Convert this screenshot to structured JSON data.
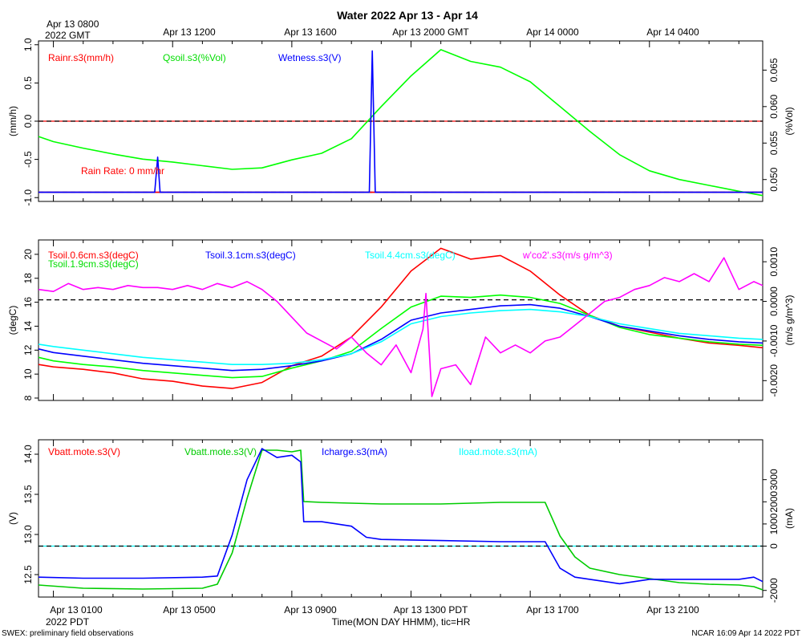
{
  "title": "Water 2022 Apr 13 - Apr 14",
  "top_axis": {
    "first_tick": [
      "Apr 13 0800",
      "2022 GMT"
    ],
    "ticks": [
      "Apr 13 1200",
      "Apr 13 1600",
      "Apr 13 2000 GMT",
      "Apr 14 0000",
      "Apr 14 0400"
    ]
  },
  "bottom_axis": {
    "ticks": [
      "Apr 13 0100",
      "Apr 13 0500",
      "Apr 13 0900",
      "Apr 13 1300 PDT",
      "Apr 13 1700",
      "Apr 13 2100"
    ],
    "year_label": "2022 PDT",
    "xlabel": "Time(MON DAY HHMM), tic=HR"
  },
  "footer": {
    "left": "SWEX: preliminary field observations",
    "right": "NCAR 16:09 Apr 14 2022 PDT"
  },
  "colors": {
    "red": "#ff0000",
    "green": "#00dd00",
    "blue": "#0000ff",
    "cyan": "#00ffff",
    "magenta": "#ff00ff",
    "black": "#000000"
  },
  "chart_data": [
    {
      "type": "line",
      "xlim": [
        0.5,
        24.8
      ],
      "ylabel_left": "(mm/h)",
      "ylabel_right": "(%Vol)",
      "ylim_left": [
        -1.05,
        1.05
      ],
      "ylim_right": [
        0.047,
        0.069
      ],
      "yticks_left": [
        {
          "v": -1.0,
          "label": "-1.0"
        },
        {
          "v": -0.5,
          "label": "-0.5"
        },
        {
          "v": 0.0,
          "label": "0.0"
        },
        {
          "v": 0.5,
          "label": "0.5"
        },
        {
          "v": 1.0,
          "label": "1.0"
        }
      ],
      "yticks_right": [
        {
          "v": 0.05,
          "label": "0.050"
        },
        {
          "v": 0.055,
          "label": "0.055"
        },
        {
          "v": 0.06,
          "label": "0.060"
        },
        {
          "v": 0.065,
          "label": "0.065"
        }
      ],
      "hlines": [
        {
          "axis": "left",
          "y": 0.0,
          "color": "#ff0000"
        },
        {
          "axis": "left",
          "y": 0.0,
          "color": "#000000"
        },
        {
          "axis": "left",
          "y": -0.93,
          "color": "#0000ff"
        },
        {
          "axis": "left",
          "y": -0.93,
          "color": "#000000"
        }
      ],
      "annotation": {
        "text": "Rain Rate: 0 mm/hr",
        "color": "#ff0000"
      },
      "series": [
        {
          "name": "Rainr.s3(mm/h)",
          "color": "#ff0000",
          "axis": "left",
          "x": [
            0.5,
            24.8
          ],
          "y": [
            -0.93,
            -0.93
          ]
        },
        {
          "name": "Qsoil.s3(%Vol)",
          "color": "#00ff00",
          "axis": "right",
          "x": [
            0.5,
            1,
            2,
            3,
            4,
            5,
            6,
            7,
            8,
            9,
            10,
            11,
            12,
            13,
            14,
            15,
            16,
            17,
            18,
            19,
            20,
            21,
            22,
            23,
            24,
            24.8
          ],
          "y": [
            0.0559,
            0.0552,
            0.0543,
            0.0535,
            0.0528,
            0.0524,
            0.0519,
            0.0514,
            0.0516,
            0.0527,
            0.0536,
            0.0556,
            0.06,
            0.0642,
            0.0678,
            0.0662,
            0.0654,
            0.0634,
            0.06,
            0.0566,
            0.0534,
            0.0512,
            0.05,
            0.0492,
            0.0484,
            0.0478
          ]
        },
        {
          "name": "Wetness.s3(V)",
          "color": "#0000ff",
          "axis": "left",
          "x": [
            0.5,
            4.4,
            4.5,
            4.58,
            11.6,
            11.7,
            11.8,
            24.8
          ],
          "y": [
            -0.93,
            -0.93,
            -0.47,
            -0.93,
            -0.93,
            0.92,
            -0.93,
            -0.93
          ]
        }
      ]
    },
    {
      "type": "line",
      "xlim": [
        0.5,
        24.8
      ],
      "ylabel_left": "(degC)",
      "ylabel_right": "(m/s g/m^3)",
      "ylim_left": [
        7.8,
        21.2
      ],
      "ylim_right": [
        -0.0025,
        0.00155
      ],
      "yticks_left": [
        {
          "v": 8,
          "label": "8"
        },
        {
          "v": 10,
          "label": "10"
        },
        {
          "v": 12,
          "label": "12"
        },
        {
          "v": 14,
          "label": "14"
        },
        {
          "v": 16,
          "label": "16"
        },
        {
          "v": 18,
          "label": "18"
        },
        {
          "v": 20,
          "label": "20"
        }
      ],
      "yticks_right": [
        {
          "v": -0.002,
          "label": "-0.0020"
        },
        {
          "v": -0.001,
          "label": "-0.0010"
        },
        {
          "v": 0.0,
          "label": "0.0000"
        },
        {
          "v": 0.001,
          "label": "0.0010"
        }
      ],
      "hlines": [
        {
          "axis": "left",
          "y": 16.2,
          "color": "#000000"
        }
      ],
      "series": [
        {
          "name": "Tsoil.0.6cm.s3(degC)",
          "color": "#ff0000",
          "axis": "left",
          "x": [
            0.5,
            1,
            2,
            3,
            4,
            5,
            6,
            7,
            8,
            9,
            10,
            11,
            12,
            13,
            14,
            15,
            16,
            17,
            18,
            19,
            20,
            21,
            22,
            23,
            24,
            24.8
          ],
          "y": [
            10.8,
            10.6,
            10.4,
            10.1,
            9.6,
            9.4,
            9.0,
            8.8,
            9.3,
            10.7,
            11.5,
            13.1,
            15.6,
            18.6,
            20.5,
            19.6,
            19.9,
            18.6,
            16.6,
            14.9,
            14.0,
            13.5,
            13.0,
            12.6,
            12.4,
            12.2
          ]
        },
        {
          "name": "Tsoil.1.9cm.s3(degC)",
          "color": "#00ff00",
          "axis": "left",
          "x": [
            0.5,
            1,
            2,
            3,
            4,
            5,
            6,
            7,
            8,
            9,
            10,
            11,
            12,
            13,
            14,
            15,
            16,
            17,
            18,
            19,
            20,
            21,
            22,
            23,
            24,
            24.8
          ],
          "y": [
            11.4,
            11.1,
            10.8,
            10.6,
            10.3,
            10.1,
            9.9,
            9.7,
            9.8,
            10.5,
            11.1,
            11.9,
            13.8,
            15.6,
            16.5,
            16.4,
            16.6,
            16.4,
            15.9,
            14.9,
            13.9,
            13.3,
            13.0,
            12.7,
            12.5,
            12.4
          ]
        },
        {
          "name": "Tsoil.3.1cm.s3(degC)",
          "color": "#0000ff",
          "axis": "left",
          "x": [
            0.5,
            1,
            2,
            3,
            4,
            5,
            6,
            7,
            8,
            9,
            10,
            11,
            12,
            13,
            14,
            15,
            16,
            17,
            18,
            19,
            20,
            21,
            22,
            23,
            24,
            24.8
          ],
          "y": [
            12.1,
            11.8,
            11.5,
            11.2,
            10.9,
            10.7,
            10.5,
            10.3,
            10.4,
            10.7,
            11.1,
            11.7,
            12.9,
            14.5,
            15.1,
            15.4,
            15.7,
            15.8,
            15.5,
            14.8,
            14.0,
            13.6,
            13.2,
            12.9,
            12.7,
            12.6
          ]
        },
        {
          "name": "Tsoil.4.4cm.s3(degC)",
          "color": "#00ffff",
          "axis": "left",
          "x": [
            0.5,
            1,
            2,
            3,
            4,
            5,
            6,
            7,
            8,
            9,
            10,
            11,
            12,
            13,
            14,
            15,
            16,
            17,
            18,
            19,
            20,
            21,
            22,
            23,
            24,
            24.8
          ],
          "y": [
            12.5,
            12.3,
            12.0,
            11.7,
            11.4,
            11.2,
            11.0,
            10.8,
            10.8,
            10.9,
            11.2,
            11.7,
            12.7,
            14.2,
            14.8,
            15.1,
            15.3,
            15.4,
            15.2,
            14.8,
            14.2,
            13.8,
            13.4,
            13.2,
            13.0,
            12.9
          ]
        },
        {
          "name": "w'co2'.s3(m/s g/m^3)",
          "color": "#ff00ff",
          "axis": "right",
          "x": [
            0.5,
            1,
            1.5,
            2,
            2.5,
            3,
            3.5,
            4,
            4.5,
            5,
            5.5,
            6,
            6.5,
            7,
            7.5,
            8,
            8.5,
            9,
            9.5,
            10,
            10.5,
            11,
            11.5,
            12,
            12.5,
            13,
            13.4,
            13.5,
            13.7,
            14,
            14.5,
            15,
            15.5,
            16,
            16.5,
            17,
            17.5,
            18,
            18.5,
            19,
            19.5,
            20,
            20.5,
            21,
            21.5,
            22,
            22.5,
            23,
            23.5,
            24,
            24.5,
            24.8
          ],
          "y": [
            0.0003,
            0.00025,
            0.00045,
            0.0003,
            0.00035,
            0.0003,
            0.0004,
            0.00035,
            0.00035,
            0.0003,
            0.0004,
            0.0003,
            0.00045,
            0.00035,
            0.0005,
            0.0003,
            0.0,
            -0.0004,
            -0.0008,
            -0.001,
            -0.0012,
            -0.0009,
            -0.0013,
            -0.0016,
            -0.0011,
            -0.0018,
            -0.0007,
            0.0002,
            -0.0024,
            -0.0017,
            -0.0016,
            -0.0021,
            -0.0009,
            -0.0013,
            -0.0011,
            -0.0013,
            -0.001,
            -0.0009,
            -0.0006,
            -0.0003,
            0.0,
            0.0001,
            0.0003,
            0.0004,
            0.0006,
            0.0005,
            0.0007,
            0.0005,
            0.0011,
            0.0003,
            0.0005,
            0.0004
          ]
        }
      ]
    },
    {
      "type": "line",
      "xlim": [
        0.5,
        24.8
      ],
      "ylabel_left": "(V)",
      "ylabel_right": "(mA)",
      "ylim_left": [
        12.22,
        14.18
      ],
      "ylim_right": [
        -2300,
        4800
      ],
      "yticks_left": [
        {
          "v": 12.5,
          "label": "12.5"
        },
        {
          "v": 13.0,
          "label": "13.0"
        },
        {
          "v": 13.5,
          "label": "13.5"
        },
        {
          "v": 14.0,
          "label": "14.0"
        }
      ],
      "yticks_right": [
        {
          "v": -2000,
          "label": "-2000"
        },
        {
          "v": 0,
          "label": "0"
        },
        {
          "v": 1000,
          "label": "1000"
        },
        {
          "v": 2000,
          "label": "2000"
        },
        {
          "v": 3000,
          "label": "3000"
        }
      ],
      "hlines": [
        {
          "axis": "right",
          "y": 0,
          "color": "#00ffff"
        },
        {
          "axis": "right",
          "y": 0,
          "color": "#000000"
        }
      ],
      "series": [
        {
          "name": "Vbatt.mote.s3(V)",
          "color": "#ff0000",
          "axis": "left",
          "x": [],
          "y": []
        },
        {
          "name": "Vbatt.mote.s3(V)",
          "color": "#00cc00",
          "axis": "left",
          "x": [
            0.5,
            2,
            4,
            6,
            6.5,
            7.0,
            7.5,
            8.0,
            8.5,
            9.0,
            9.3,
            9.4,
            10,
            12,
            14,
            16,
            17.5,
            18.0,
            18.5,
            19,
            20,
            21,
            22,
            23,
            24,
            24.5,
            24.8
          ],
          "y": [
            12.37,
            12.33,
            12.32,
            12.33,
            12.38,
            12.77,
            13.45,
            14.05,
            14.05,
            14.03,
            14.05,
            13.41,
            13.4,
            13.38,
            13.38,
            13.4,
            13.4,
            12.98,
            12.72,
            12.58,
            12.5,
            12.45,
            12.4,
            12.38,
            12.37,
            12.35,
            12.31
          ]
        },
        {
          "name": "Icharge.s3(mA)",
          "color": "#0000ff",
          "axis": "right",
          "x": [
            0.5,
            2,
            4,
            6,
            6.5,
            7.0,
            7.5,
            8.0,
            8.5,
            9.0,
            9.3,
            9.4,
            10,
            11,
            11.5,
            12,
            14,
            16,
            17.5,
            18.0,
            18.5,
            19,
            20,
            21,
            22,
            23,
            24,
            24.5,
            24.8
          ],
          "y": [
            -1400,
            -1450,
            -1450,
            -1400,
            -1350,
            500,
            3000,
            4400,
            4000,
            4100,
            3800,
            1100,
            1100,
            900,
            400,
            300,
            250,
            200,
            200,
            -1000,
            -1400,
            -1500,
            -1700,
            -1500,
            -1500,
            -1500,
            -1500,
            -1400,
            -1600
          ]
        },
        {
          "name": "Iload.mote.s3(mA)",
          "color": "#00ffff",
          "axis": "right",
          "x": [],
          "y": []
        }
      ]
    }
  ]
}
